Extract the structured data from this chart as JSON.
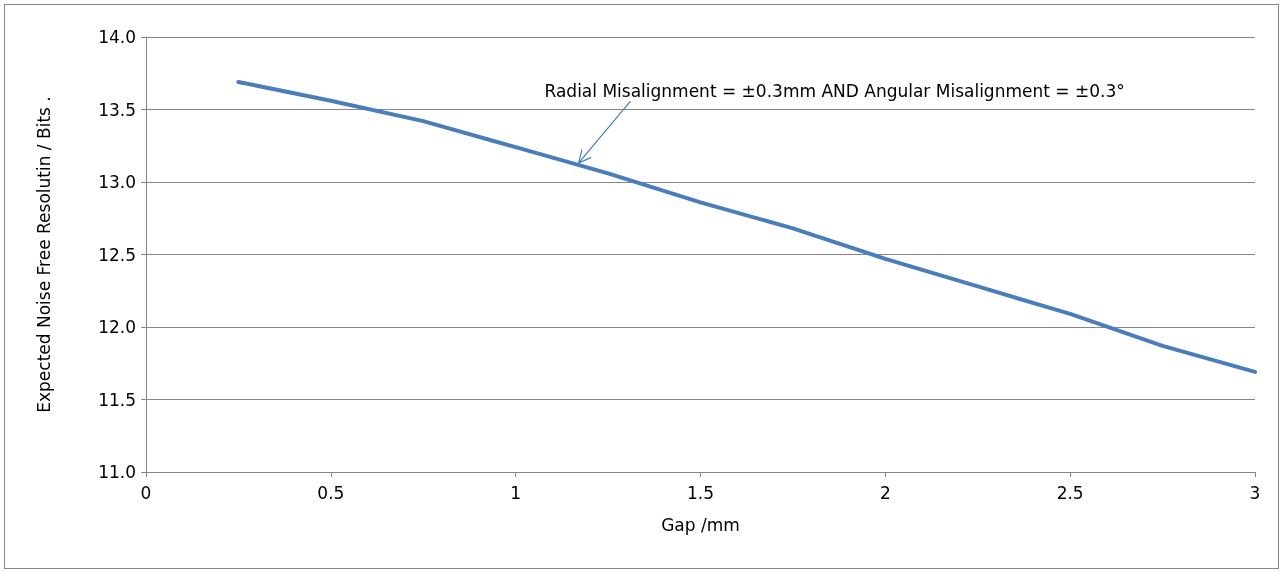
{
  "chart_data": {
    "type": "line",
    "xlabel": "Gap /mm",
    "ylabel": "Expected Noise Free Resolutin / Bits .",
    "x": [
      0.25,
      0.5,
      0.75,
      1.0,
      1.25,
      1.5,
      1.75,
      2.0,
      2.25,
      2.5,
      2.75,
      3.0
    ],
    "series": [
      {
        "color": "#4a7ebb",
        "values": [
          13.69,
          13.56,
          13.42,
          13.24,
          13.06,
          12.86,
          12.68,
          12.47,
          12.28,
          12.09,
          11.87,
          11.69
        ]
      }
    ],
    "xlim": [
      0,
      3
    ],
    "xticks": [
      0,
      0.5,
      1,
      1.5,
      2,
      2.5,
      3
    ],
    "ylim": [
      11,
      14
    ],
    "yticks": [
      {
        "value": 11,
        "label": "11.0"
      },
      {
        "value": 11.5,
        "label": "11.5"
      },
      {
        "value": 12,
        "label": "12.0"
      },
      {
        "value": 12.5,
        "label": "12.5"
      },
      {
        "value": 13,
        "label": "13.0"
      },
      {
        "value": 13.5,
        "label": "13.5"
      },
      {
        "value": 14,
        "label": "14.0"
      }
    ],
    "grid": "y",
    "marker": "none",
    "line_style": "solid",
    "annotations": [
      {
        "text": "Radial Misalignment = ±0.3mm AND Angular Misalignment = ±0.3°",
        "x": 1.17,
        "y": 13.13
      }
    ]
  }
}
